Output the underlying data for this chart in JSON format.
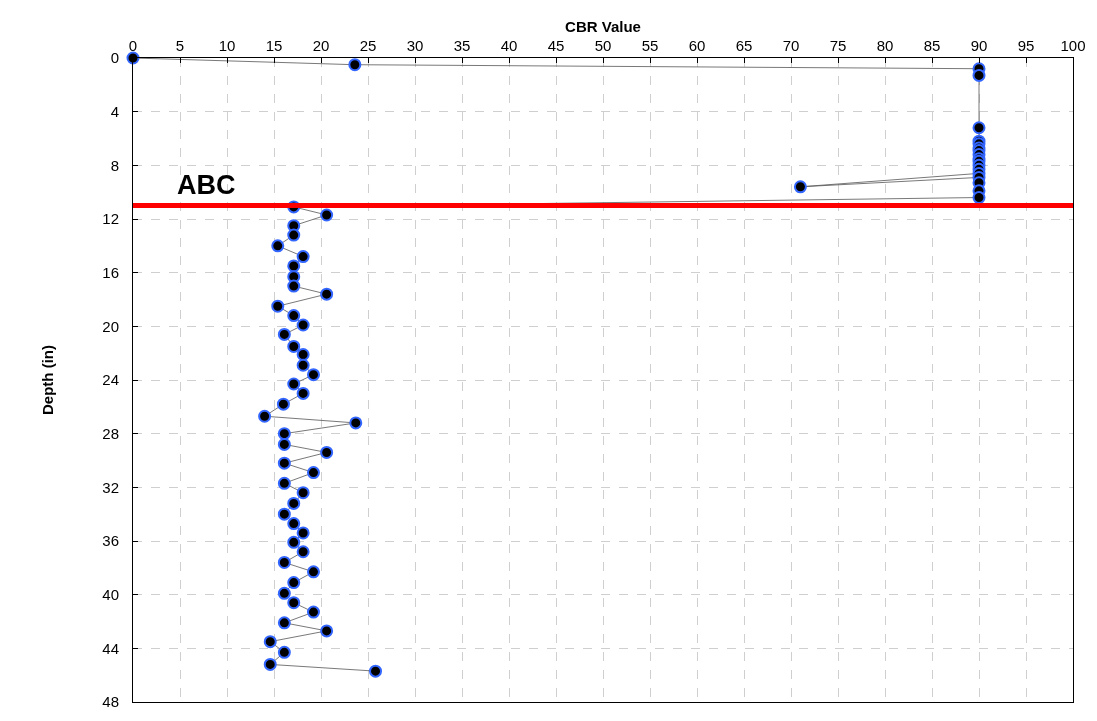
{
  "chart_data": {
    "type": "line",
    "xlabel": "CBR Value",
    "ylabel": "Depth (in)",
    "xlim": [
      0,
      100
    ],
    "xticks": [
      0,
      5,
      10,
      15,
      20,
      25,
      30,
      35,
      40,
      45,
      50,
      55,
      60,
      65,
      70,
      75,
      80,
      85,
      90,
      95,
      100
    ],
    "ylim": [
      48,
      0
    ],
    "yticks": [
      0,
      4,
      8,
      12,
      16,
      20,
      24,
      28,
      32,
      36,
      40,
      44,
      48
    ],
    "grid": true,
    "marker": "circle",
    "line_style": "solid",
    "series": [
      {
        "color": "#3366ff",
        "x": [
          0,
          23.6,
          90,
          90,
          90,
          90,
          90,
          90,
          90,
          90,
          90,
          90,
          90,
          90,
          90,
          71,
          90,
          90,
          90,
          90,
          17.1,
          20.6,
          17.1,
          17.1,
          15.4,
          18.1,
          17.1,
          17.1,
          17.1,
          20.6,
          15.4,
          17.1,
          18.1,
          16.1,
          17.1,
          18.1,
          18.1,
          19.2,
          17.1,
          18.1,
          16.0,
          14.0,
          23.7,
          16.1,
          16.1,
          20.6,
          16.1,
          19.2,
          16.1,
          18.1,
          17.1,
          16.1,
          17.1,
          18.1,
          17.1,
          18.1,
          16.1,
          19.2,
          17.1,
          16.1,
          17.1,
          19.2,
          16.1,
          20.6,
          14.6,
          16.1,
          14.6,
          25.8
        ],
        "values": [
          0,
          0.5,
          0.8,
          1.3,
          5.2,
          6.2,
          6.4,
          6.7,
          6.9,
          7.2,
          7.5,
          7.7,
          8.0,
          8.3,
          8.6,
          9.6,
          8.9,
          9.3,
          9.9,
          10.4,
          11.1,
          11.7,
          12.5,
          13.2,
          14.0,
          14.8,
          15.5,
          16.3,
          17.0,
          17.6,
          18.5,
          19.2,
          19.9,
          20.6,
          21.5,
          22.1,
          22.9,
          23.6,
          24.3,
          25.0,
          25.8,
          26.7,
          27.2,
          28.0,
          28.8,
          29.4,
          30.2,
          30.9,
          31.7,
          32.4,
          33.2,
          34.0,
          34.7,
          35.4,
          36.1,
          36.8,
          37.6,
          38.3,
          39.1,
          39.9,
          40.6,
          41.3,
          42.1,
          42.7,
          43.5,
          44.3,
          45.2,
          45.7
        ]
      }
    ],
    "ref_lines": [
      {
        "axis": "y",
        "value": 11,
        "label": "ABC",
        "color": "#ff0000"
      }
    ]
  }
}
